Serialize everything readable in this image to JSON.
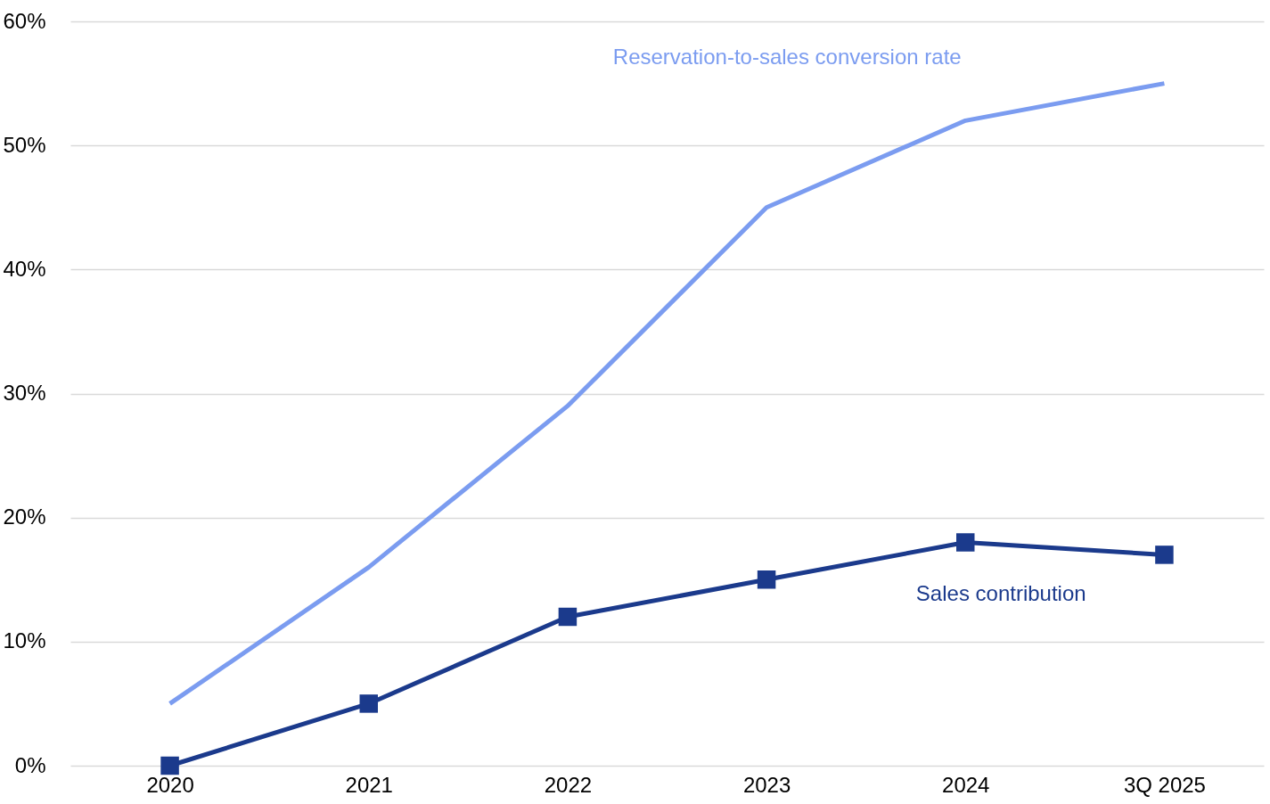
{
  "chart_data": {
    "type": "line",
    "categories": [
      "2020",
      "2021",
      "2022",
      "2023",
      "2024",
      "3Q 2025"
    ],
    "series": [
      {
        "name": "Reservation-to-sales conversion rate",
        "color": "#7b9cf0",
        "values": [
          5,
          16,
          29,
          45,
          52,
          55
        ],
        "marker": "none"
      },
      {
        "name": "Sales contribution",
        "color": "#1b3a8c",
        "values": [
          0,
          5,
          12,
          15,
          18,
          17
        ],
        "marker": "square"
      }
    ],
    "ylim": [
      0,
      60
    ],
    "yticks": [
      {
        "value": 0,
        "label": "0%"
      },
      {
        "value": 10,
        "label": "10%"
      },
      {
        "value": 20,
        "label": "20%"
      },
      {
        "value": 30,
        "label": "30%"
      },
      {
        "value": 40,
        "label": "40%"
      },
      {
        "value": 50,
        "label": "50%"
      },
      {
        "value": 60,
        "label": "60%"
      }
    ],
    "grid": "y",
    "line_style": "solid"
  }
}
